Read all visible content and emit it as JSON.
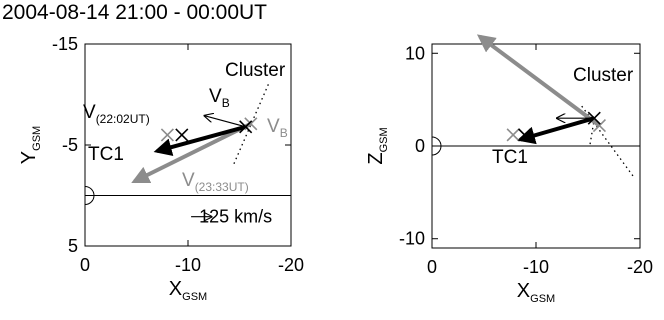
{
  "title": "2004-08-14 21:00 - 00:00UT",
  "colors": {
    "black": "#000000",
    "gray": "#8c8c8c",
    "line": "#000000"
  },
  "chart_data": [
    {
      "type": "scatter",
      "xlabel_main": "X",
      "xlabel_sub": "GSM",
      "ylabel_main": "Y",
      "ylabel_sub": "GSM",
      "xlim": [
        0,
        -20
      ],
      "ylim": [
        5,
        -15
      ],
      "xticks": [
        0,
        -10,
        -20
      ],
      "yticks": [
        -15,
        -5,
        5
      ],
      "xtick_labels": [
        "0",
        "-10",
        "-20"
      ],
      "ytick_labels": [
        "-15",
        "-5",
        "5"
      ],
      "labels": {
        "cluster": "Cluster",
        "tc1": "TC1",
        "vb_black": "V",
        "vb_black_sub": "B",
        "vb_gray": "V",
        "vb_gray_sub": "B",
        "v_black": "V",
        "v_black_sub": "(22:02UT)",
        "v_gray": "V",
        "v_gray_sub": "(23:33UT)",
        "scale": "125 km/s"
      },
      "points": {
        "cluster_black": [
          -15.6,
          -6.8
        ],
        "cluster_gray": [
          -16.1,
          -7.1
        ],
        "tc1_black": [
          -9.4,
          -6.0
        ],
        "tc1_gray": [
          -8.0,
          -6.0
        ]
      },
      "vectors": {
        "v_black": {
          "from": [
            -15.6,
            -6.8
          ],
          "to": [
            -7.0,
            -4.4
          ]
        },
        "v_gray": {
          "from": [
            -16.1,
            -7.1
          ],
          "to": [
            -4.8,
            -1.4
          ]
        },
        "vb_black": {
          "from": [
            -15.6,
            -6.8
          ],
          "to": [
            -11.6,
            -7.9
          ]
        },
        "scale_vector": {
          "from": [
            -12.3,
            2.1
          ],
          "to": [
            -10.3,
            2.1
          ]
        }
      },
      "field_lines": [
        {
          "from": [
            -17.8,
            -11.0
          ],
          "to": [
            -14.4,
            -3.0
          ]
        }
      ],
      "reference_line_y": 0
    },
    {
      "type": "scatter",
      "xlabel_main": "X",
      "xlabel_sub": "GSM",
      "ylabel_main": "Z",
      "ylabel_sub": "GSM",
      "xlim": [
        0,
        -20
      ],
      "ylim": [
        -11,
        11
      ],
      "xticks": [
        0,
        -10,
        -20
      ],
      "yticks": [
        -10,
        0,
        10
      ],
      "xtick_labels": [
        "0",
        "-10",
        "-20"
      ],
      "ytick_labels": [
        "-10",
        "0",
        "10"
      ],
      "labels": {
        "cluster": "Cluster",
        "tc1": "TC1"
      },
      "points": {
        "cluster_black": [
          -15.6,
          3.0
        ],
        "cluster_gray": [
          -16.1,
          2.2
        ],
        "tc1_black": [
          -8.9,
          1.2
        ],
        "tc1_gray": [
          -7.8,
          1.2
        ]
      },
      "vectors": {
        "v_black": {
          "from": [
            -15.6,
            3.0
          ],
          "to": [
            -8.5,
            0.7
          ]
        },
        "v_gray": {
          "from": [
            -16.1,
            2.2
          ],
          "to": [
            -4.6,
            11.8
          ]
        },
        "vb_black": {
          "from": [
            -15.6,
            3.0
          ],
          "to": [
            -12.0,
            3.0
          ]
        }
      },
      "field_lines": [
        {
          "from": [
            -14.4,
            4.3
          ],
          "to": [
            -19.5,
            -3.5
          ]
        },
        {
          "from": [
            -15.2,
            0.2
          ],
          "to": [
            -15.6,
            2.9
          ]
        }
      ],
      "reference_line_y": 0
    }
  ]
}
